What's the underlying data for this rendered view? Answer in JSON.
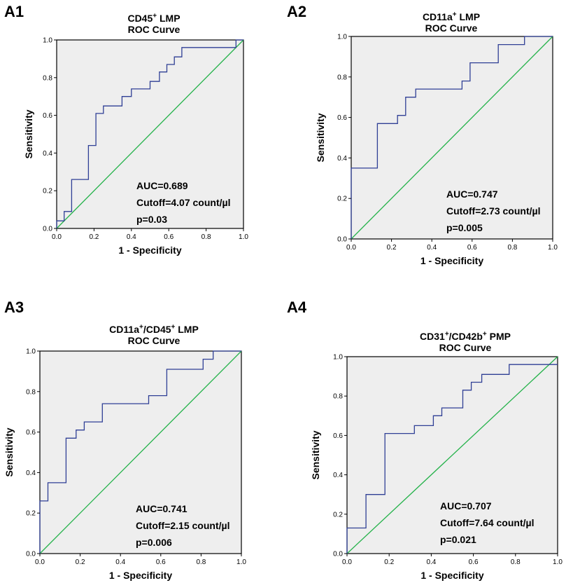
{
  "colors": {
    "roc": "#2f3f95",
    "diagonal": "#24b24a",
    "plot_bg": "#eeeeee",
    "axis": "#000000"
  },
  "chart_data": [
    {
      "id": "A1",
      "panel_label": "A1",
      "type": "line",
      "title_prefix": "CD45",
      "title_sup": "+",
      "title_suffix": " LMP",
      "title_line2": "ROC Curve",
      "xlabel": "1 - Specificity",
      "ylabel": "Sensitivity",
      "xlim": [
        0,
        1
      ],
      "ylim": [
        0,
        1
      ],
      "xticks": [
        "0.0",
        "0.2",
        "0.4",
        "0.6",
        "0.8",
        "1.0"
      ],
      "yticks": [
        "0.0",
        "0.2",
        "0.4",
        "0.6",
        "0.8",
        "1.0"
      ],
      "annotations": [
        "AUC=0.689",
        "Cutoff=4.07 count/µl",
        "p=0.03"
      ],
      "series": [
        {
          "name": "ROC",
          "x": [
            0,
            0,
            0.04,
            0.04,
            0.08,
            0.08,
            0.17,
            0.17,
            0.21,
            0.21,
            0.25,
            0.25,
            0.35,
            0.35,
            0.4,
            0.4,
            0.5,
            0.5,
            0.55,
            0.55,
            0.59,
            0.59,
            0.63,
            0.63,
            0.67,
            0.67,
            0.96,
            0.96,
            1.0
          ],
          "y": [
            0,
            0.04,
            0.04,
            0.09,
            0.09,
            0.26,
            0.26,
            0.44,
            0.44,
            0.61,
            0.61,
            0.65,
            0.65,
            0.7,
            0.7,
            0.74,
            0.74,
            0.78,
            0.78,
            0.83,
            0.83,
            0.87,
            0.87,
            0.91,
            0.91,
            0.96,
            0.96,
            1.0,
            1.0
          ]
        },
        {
          "name": "Reference",
          "x": [
            0,
            1
          ],
          "y": [
            0,
            1
          ]
        }
      ]
    },
    {
      "id": "A2",
      "panel_label": "A2",
      "type": "line",
      "title_prefix": "CD11a",
      "title_sup": "+",
      "title_suffix": " LMP",
      "title_line2": "ROC Curve",
      "xlabel": "1 - Specificity",
      "ylabel": "Sensitivity",
      "xlim": [
        0,
        1
      ],
      "ylim": [
        0,
        1
      ],
      "xticks": [
        "0.0",
        "0.2",
        "0.4",
        "0.6",
        "0.8",
        "1.0"
      ],
      "yticks": [
        "0.0",
        "0.2",
        "0.4",
        "0.6",
        "0.8",
        "1.0"
      ],
      "annotations": [
        "AUC=0.747",
        "Cutoff=2.73 count/µl",
        "p=0.005"
      ],
      "series": [
        {
          "name": "ROC",
          "x": [
            0,
            0,
            0.13,
            0.13,
            0.23,
            0.23,
            0.27,
            0.27,
            0.32,
            0.32,
            0.55,
            0.55,
            0.59,
            0.59,
            0.73,
            0.73,
            0.86,
            0.86,
            1.0
          ],
          "y": [
            0,
            0.35,
            0.35,
            0.57,
            0.57,
            0.61,
            0.61,
            0.7,
            0.7,
            0.74,
            0.74,
            0.78,
            0.78,
            0.87,
            0.87,
            0.96,
            0.96,
            1.0,
            1.0
          ]
        },
        {
          "name": "Reference",
          "x": [
            0,
            1
          ],
          "y": [
            0,
            1
          ]
        }
      ]
    },
    {
      "id": "A3",
      "panel_label": "A3",
      "type": "line",
      "title_prefix": "CD11a",
      "title_sup": "+",
      "title_mid": "/CD45",
      "title_sup2": "+",
      "title_suffix": " LMP",
      "title_line2": "ROC Curve",
      "xlabel": "1 - Specificity",
      "ylabel": "Sensitivity",
      "xlim": [
        0,
        1
      ],
      "ylim": [
        0,
        1
      ],
      "xticks": [
        "0.0",
        "0.2",
        "0.4",
        "0.6",
        "0.8",
        "1.0"
      ],
      "yticks": [
        "0.0",
        "0.2",
        "0.4",
        "0.6",
        "0.8",
        "1.0"
      ],
      "annotations": [
        "AUC=0.741",
        "Cutoff=2.15 count/µl",
        "p=0.006"
      ],
      "series": [
        {
          "name": "ROC",
          "x": [
            0,
            0,
            0.04,
            0.04,
            0.13,
            0.13,
            0.18,
            0.18,
            0.22,
            0.22,
            0.31,
            0.31,
            0.54,
            0.54,
            0.63,
            0.63,
            0.81,
            0.81,
            0.86,
            0.86,
            1.0
          ],
          "y": [
            0,
            0.26,
            0.26,
            0.35,
            0.35,
            0.57,
            0.57,
            0.61,
            0.61,
            0.65,
            0.65,
            0.74,
            0.74,
            0.78,
            0.78,
            0.91,
            0.91,
            0.96,
            0.96,
            1.0,
            1.0
          ]
        },
        {
          "name": "Reference",
          "x": [
            0,
            1
          ],
          "y": [
            0,
            1
          ]
        }
      ]
    },
    {
      "id": "A4",
      "panel_label": "A4",
      "type": "line",
      "title_prefix": "CD31",
      "title_sup": "+",
      "title_mid": "/CD42b",
      "title_sup2": "+",
      "title_suffix": " PMP",
      "title_line2": "ROC Curve",
      "xlabel": "1 - Specificity",
      "ylabel": "Sensitivity",
      "xlim": [
        0,
        1
      ],
      "ylim": [
        0,
        1
      ],
      "xticks": [
        "0.0",
        "0.2",
        "0.4",
        "0.6",
        "0.8",
        "1.0"
      ],
      "yticks": [
        "0.0",
        "0.2",
        "0.4",
        "0.6",
        "0.8",
        "1.0"
      ],
      "annotations": [
        "AUC=0.707",
        "Cutoff=7.64 count/µl",
        "p=0.021"
      ],
      "series": [
        {
          "name": "ROC",
          "x": [
            0,
            0,
            0.09,
            0.09,
            0.18,
            0.18,
            0.32,
            0.32,
            0.41,
            0.41,
            0.45,
            0.45,
            0.55,
            0.55,
            0.59,
            0.59,
            0.64,
            0.64,
            0.77,
            0.77,
            0.95,
            0.95,
            1.0
          ],
          "y": [
            0,
            0.13,
            0.13,
            0.3,
            0.3,
            0.61,
            0.61,
            0.65,
            0.65,
            0.7,
            0.7,
            0.74,
            0.74,
            0.83,
            0.83,
            0.87,
            0.87,
            0.91,
            0.91,
            0.96,
            0.96,
            0.96,
            0.96
          ]
        },
        {
          "name": "Reference",
          "x": [
            0,
            1
          ],
          "y": [
            0,
            1
          ]
        }
      ]
    }
  ]
}
